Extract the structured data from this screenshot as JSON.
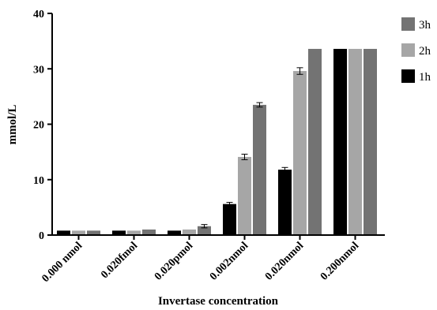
{
  "chart_data": {
    "type": "bar",
    "title": "",
    "xlabel": "Invertase concentration",
    "ylabel": "mmol/L",
    "ylim": [
      0,
      40
    ],
    "yticks": [
      0,
      10,
      20,
      30,
      40
    ],
    "grid": false,
    "legend_position": "top-right",
    "categories": [
      "0.000 nmol",
      "0.020fmol",
      "0.020pmol",
      "0.002nmol",
      "0.020nmol",
      "0.200nmol"
    ],
    "series": [
      {
        "name": "1h",
        "color": "#000000",
        "values": [
          0.8,
          0.8,
          0.8,
          5.6,
          11.8,
          33.6
        ],
        "errors": [
          0,
          0,
          0,
          0.3,
          0.4,
          0
        ]
      },
      {
        "name": "2h",
        "color": "#a6a6a6",
        "values": [
          0.8,
          0.8,
          1.0,
          14.1,
          29.6,
          33.6
        ],
        "errors": [
          0,
          0,
          0,
          0.5,
          0.6,
          0
        ]
      },
      {
        "name": "3h",
        "color": "#737373",
        "values": [
          0.8,
          1.0,
          1.6,
          23.5,
          33.6,
          33.6
        ],
        "errors": [
          0,
          0,
          0.3,
          0.4,
          0,
          0
        ]
      }
    ],
    "legend_order": [
      "3h",
      "2h",
      "1h"
    ]
  }
}
